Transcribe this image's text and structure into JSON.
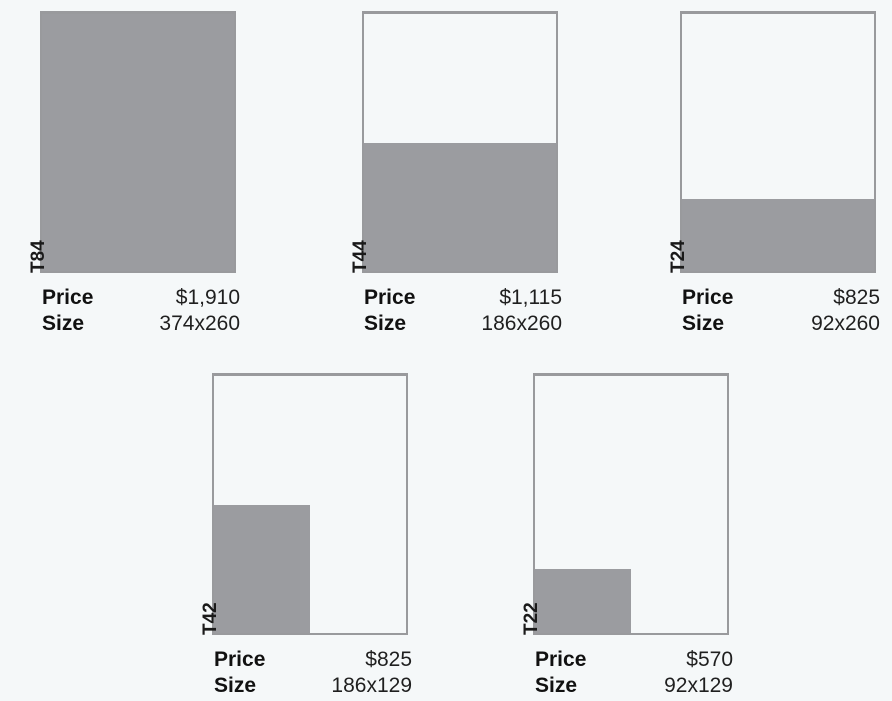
{
  "labels": {
    "price": "Price",
    "size": "Size"
  },
  "colors": {
    "background": "#f5f8f9",
    "fill": "#9b9ca0",
    "outline": "#999a9d"
  },
  "items": [
    {
      "code": "T84",
      "price": "$1,910",
      "size": "374x260",
      "fill_width_fraction": 1.0,
      "fill_height_fraction": 1.0
    },
    {
      "code": "T44",
      "price": "$1,115",
      "size": "186x260",
      "fill_width_fraction": 1.0,
      "fill_height_fraction": 0.5
    },
    {
      "code": "T24",
      "price": "$825",
      "size": "92x260",
      "fill_width_fraction": 1.0,
      "fill_height_fraction": 0.28
    },
    {
      "code": "T42",
      "price": "$825",
      "size": "186x129",
      "fill_width_fraction": 0.5,
      "fill_height_fraction": 0.5
    },
    {
      "code": "T22",
      "price": "$570",
      "size": "92x129",
      "fill_width_fraction": 0.5,
      "fill_height_fraction": 0.25
    }
  ]
}
